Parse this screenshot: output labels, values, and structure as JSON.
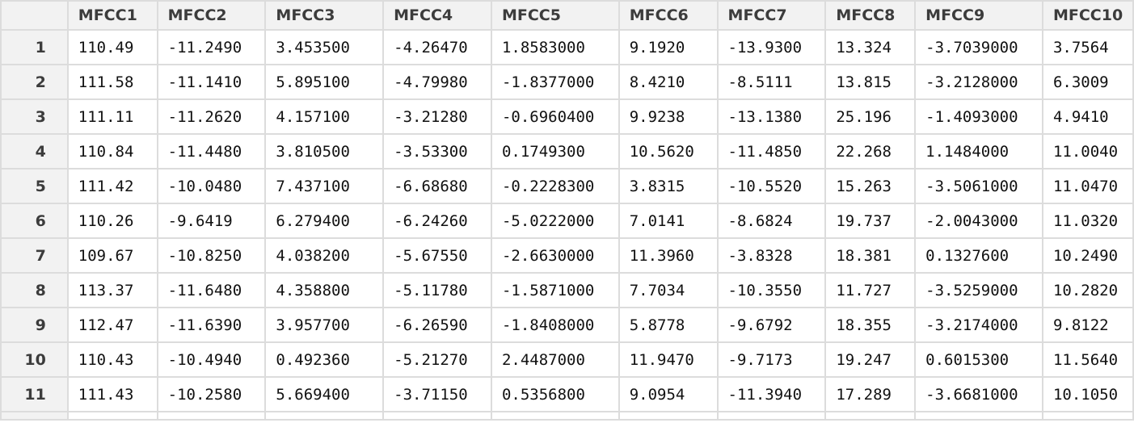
{
  "columns": [
    "MFCC1",
    "MFCC2",
    "MFCC3",
    "MFCC4",
    "MFCC5",
    "MFCC6",
    "MFCC7",
    "MFCC8",
    "MFCC9",
    "MFCC10"
  ],
  "rows": [
    {
      "index": "1",
      "values": [
        "110.49",
        "-11.2490",
        "3.453500",
        "-4.26470",
        "1.8583000",
        "9.1920",
        "-13.9300",
        "13.324",
        "-3.7039000",
        "3.7564"
      ]
    },
    {
      "index": "2",
      "values": [
        "111.58",
        "-11.1410",
        "5.895100",
        "-4.79980",
        "-1.8377000",
        "8.4210",
        "-8.5111",
        "13.815",
        "-3.2128000",
        "6.3009"
      ]
    },
    {
      "index": "3",
      "values": [
        "111.11",
        "-11.2620",
        "4.157100",
        "-3.21280",
        "-0.6960400",
        "9.9238",
        "-13.1380",
        "25.196",
        "-1.4093000",
        "4.9410"
      ]
    },
    {
      "index": "4",
      "values": [
        "110.84",
        "-11.4480",
        "3.810500",
        "-3.53300",
        "0.1749300",
        "10.5620",
        "-11.4850",
        "22.268",
        "1.1484000",
        "11.0040"
      ]
    },
    {
      "index": "5",
      "values": [
        "111.42",
        "-10.0480",
        "7.437100",
        "-6.68680",
        "-0.2228300",
        "3.8315",
        "-10.5520",
        "15.263",
        "-3.5061000",
        "11.0470"
      ]
    },
    {
      "index": "6",
      "values": [
        "110.26",
        "-9.6419",
        "6.279400",
        "-6.24260",
        "-5.0222000",
        "7.0141",
        "-8.6824",
        "19.737",
        "-2.0043000",
        "11.0320"
      ]
    },
    {
      "index": "7",
      "values": [
        "109.67",
        "-10.8250",
        "4.038200",
        "-5.67550",
        "-2.6630000",
        "11.3960",
        "-3.8328",
        "18.381",
        "0.1327600",
        "10.2490"
      ]
    },
    {
      "index": "8",
      "values": [
        "113.37",
        "-11.6480",
        "4.358800",
        "-5.11780",
        "-1.5871000",
        "7.7034",
        "-10.3550",
        "11.727",
        "-3.5259000",
        "10.2820"
      ]
    },
    {
      "index": "9",
      "values": [
        "112.47",
        "-11.6390",
        "3.957700",
        "-6.26590",
        "-1.8408000",
        "5.8778",
        "-9.6792",
        "18.355",
        "-3.2174000",
        "9.8122"
      ]
    },
    {
      "index": "10",
      "values": [
        "110.43",
        "-10.4940",
        "0.492360",
        "-5.21270",
        "2.4487000",
        "11.9470",
        "-9.7173",
        "19.247",
        "0.6015300",
        "11.5640"
      ]
    },
    {
      "index": "11",
      "values": [
        "111.43",
        "-10.2580",
        "5.669400",
        "-3.71150",
        "0.5356800",
        "9.0954",
        "-11.3940",
        "17.289",
        "-3.6681000",
        "10.1050"
      ]
    }
  ]
}
